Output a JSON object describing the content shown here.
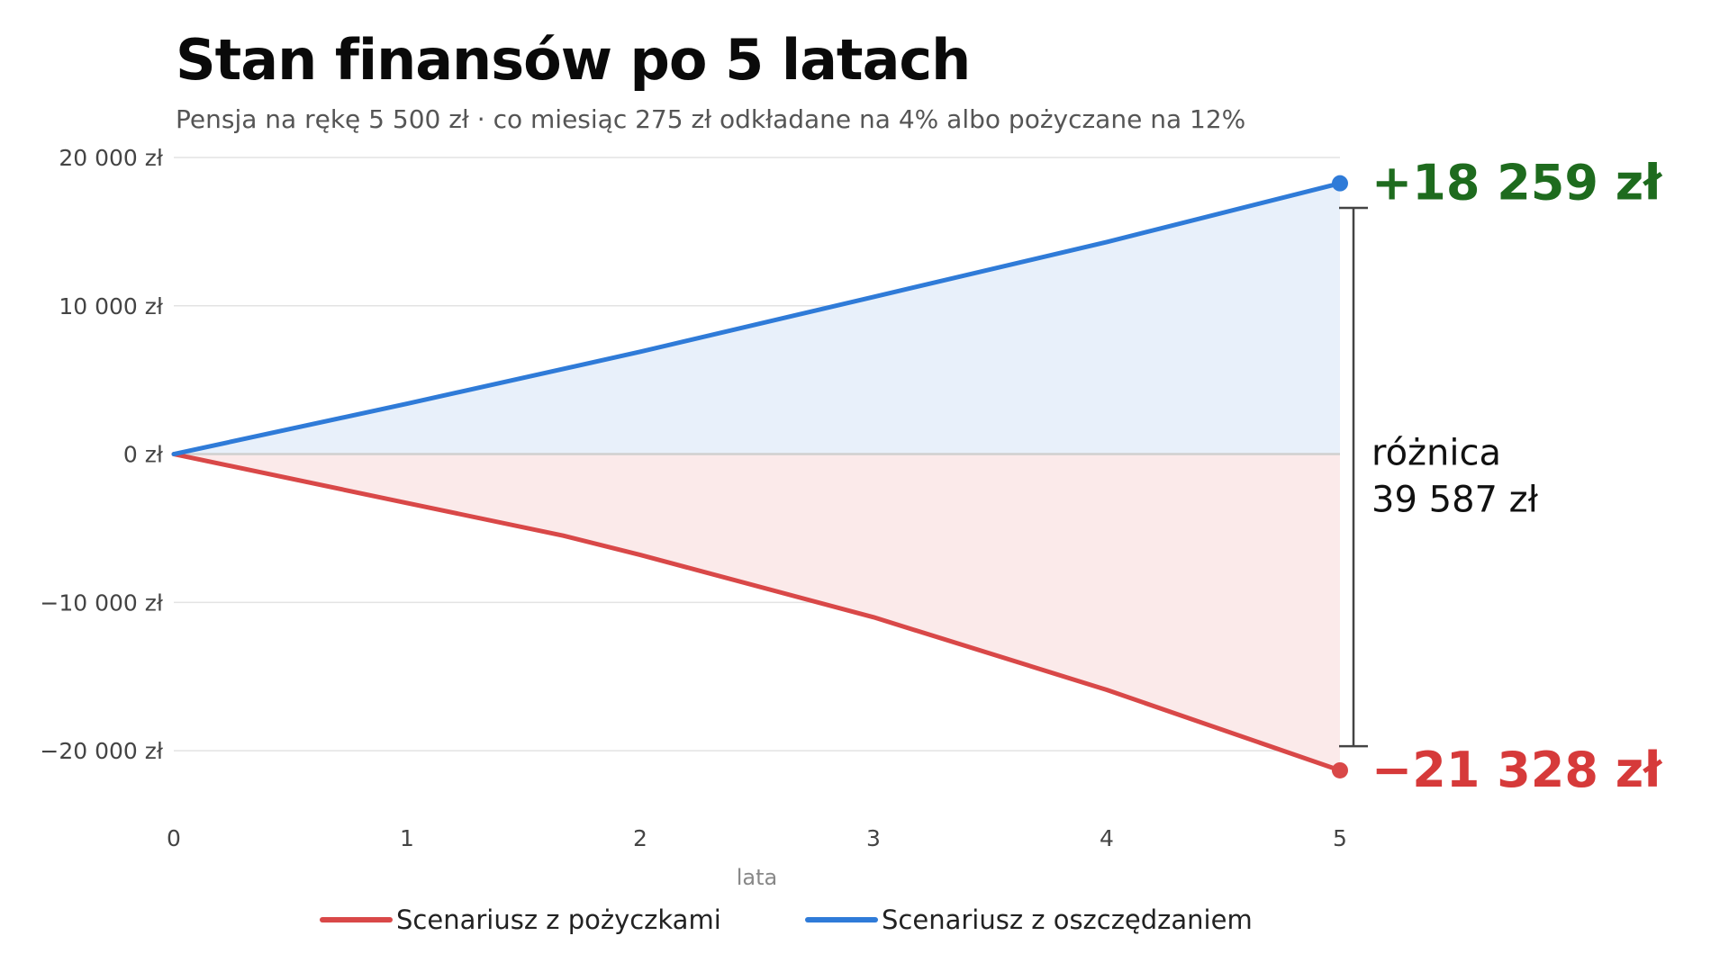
{
  "chart_data": {
    "type": "area",
    "title": "Stan finansów po 5 latach",
    "subtitle": "Pensja na rękę 5 500 zł  ·  co miesiąc 275 zł odkładane na 4% albo pożyczane na 12%",
    "xlabel": "lata",
    "ylabel": "",
    "xlim": [
      0,
      5
    ],
    "ylim": [
      -24000,
      20000
    ],
    "x_ticks": [
      0,
      1,
      2,
      3,
      4,
      5
    ],
    "x_tick_labels": [
      "0",
      "1",
      "2",
      "3",
      "4",
      "5"
    ],
    "y_ticks": [
      20000,
      10000,
      0,
      -10000,
      -20000
    ],
    "y_tick_labels": [
      "20 000 zł",
      "10 000 zł",
      "0 zł",
      "−10 000 zł",
      "−20 000 zł"
    ],
    "grid": true,
    "legend_position": "bottom-center",
    "series": [
      {
        "name": "Scenariusz z pożyczkami",
        "color": "#d94848",
        "fill": "#fbeaea",
        "x": [
          0,
          1,
          1.67,
          2,
          3,
          4,
          5
        ],
        "y": [
          0,
          -3300,
          -5500,
          -6800,
          -11000,
          -15900,
          -21328
        ]
      },
      {
        "name": "Scenariusz z oszczędzaniem",
        "color": "#2f7bd8",
        "fill": "#e8f0fa",
        "x": [
          0,
          1,
          2,
          3,
          4,
          5
        ],
        "y": [
          0,
          3400,
          6900,
          10600,
          14300,
          18259
        ]
      }
    ],
    "annotations": {
      "positive_label": "+18 259 zł",
      "positive_color": "#1e6b1e",
      "negative_label": "−21 328 zł",
      "negative_color": "#d63a3a",
      "difference_label_line1": "różnica",
      "difference_label_line2": "39 587 zł",
      "bracket_top": 16600,
      "bracket_bottom": -19700
    }
  }
}
